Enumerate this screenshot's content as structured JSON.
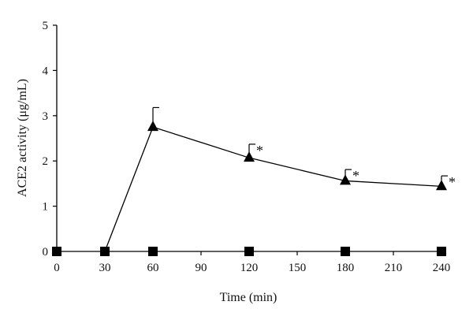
{
  "chart_data": {
    "type": "line",
    "xlabel": "Time (min)",
    "ylabel": "ACE2 activity (μg/mL)",
    "xlim": [
      0,
      240
    ],
    "ylim": [
      0,
      5
    ],
    "xticks": [
      0,
      30,
      60,
      90,
      120,
      150,
      180,
      210,
      240
    ],
    "yticks": [
      0,
      1,
      2,
      3,
      4,
      5
    ],
    "grid": false,
    "series": [
      {
        "marker": "triangle",
        "color": "#000000",
        "x": [
          30,
          60,
          120,
          180,
          240
        ],
        "y": [
          0,
          2.75,
          2.07,
          1.56,
          1.44
        ],
        "error": [
          null,
          0.43,
          0.3,
          0.25,
          0.23
        ],
        "annotations": [
          "",
          "",
          "*",
          "*",
          "*"
        ]
      },
      {
        "marker": "square",
        "color": "#000000",
        "x": [
          0,
          30,
          60,
          120,
          180,
          240
        ],
        "y": [
          0,
          0,
          0,
          0,
          0,
          0
        ]
      }
    ]
  }
}
